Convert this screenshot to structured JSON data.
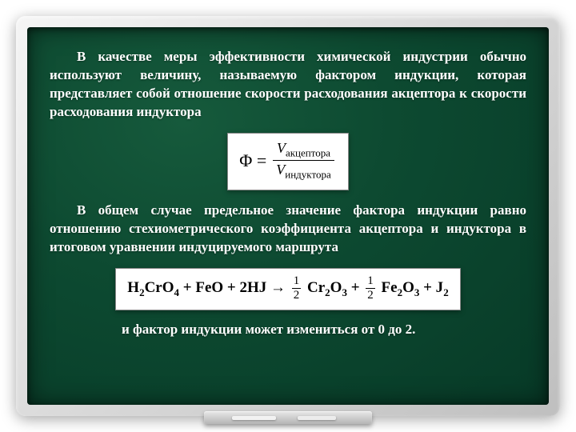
{
  "board": {
    "bg_gradient": [
      "#165a3c",
      "#0d4a31",
      "#073a27"
    ],
    "text_color": "#ffffff",
    "frame_gradient": [
      "#f5f5f5",
      "#d8d8d8",
      "#bfbfbf"
    ]
  },
  "para1": "В качестве меры эффективности химической индустрии обычно используют величину, называемую фактором индукции, которая представляет собой отношение скорости расходования акцептора к скорости расходования индуктора",
  "formula": {
    "lhs": "Φ =",
    "num_var": "V",
    "num_sub": "акцептора",
    "den_var": "V",
    "den_sub": "индуктора",
    "box_bg": "#ffffff",
    "box_border": "#888888"
  },
  "para2": "В общем случае предельное значение фактора индукции равно отношению стехиометрического коэффициента акцептора и индуктора в итоговом уравнении индуцируемого маршрута",
  "equation": {
    "lhs_terms": [
      "H",
      "2",
      "CrO",
      "4",
      " + FeO + 2HJ → "
    ],
    "frac1": {
      "num": "1",
      "den": "2"
    },
    "mid1": [
      " Cr",
      "2",
      "O",
      "3",
      " + "
    ],
    "frac2": {
      "num": "1",
      "den": "2"
    },
    "mid2": [
      "  Fe",
      "2",
      "O",
      "3",
      "   + J",
      "2"
    ],
    "box_bg": "#ffffff"
  },
  "closing": "и фактор индукции может измениться от 0 до 2."
}
